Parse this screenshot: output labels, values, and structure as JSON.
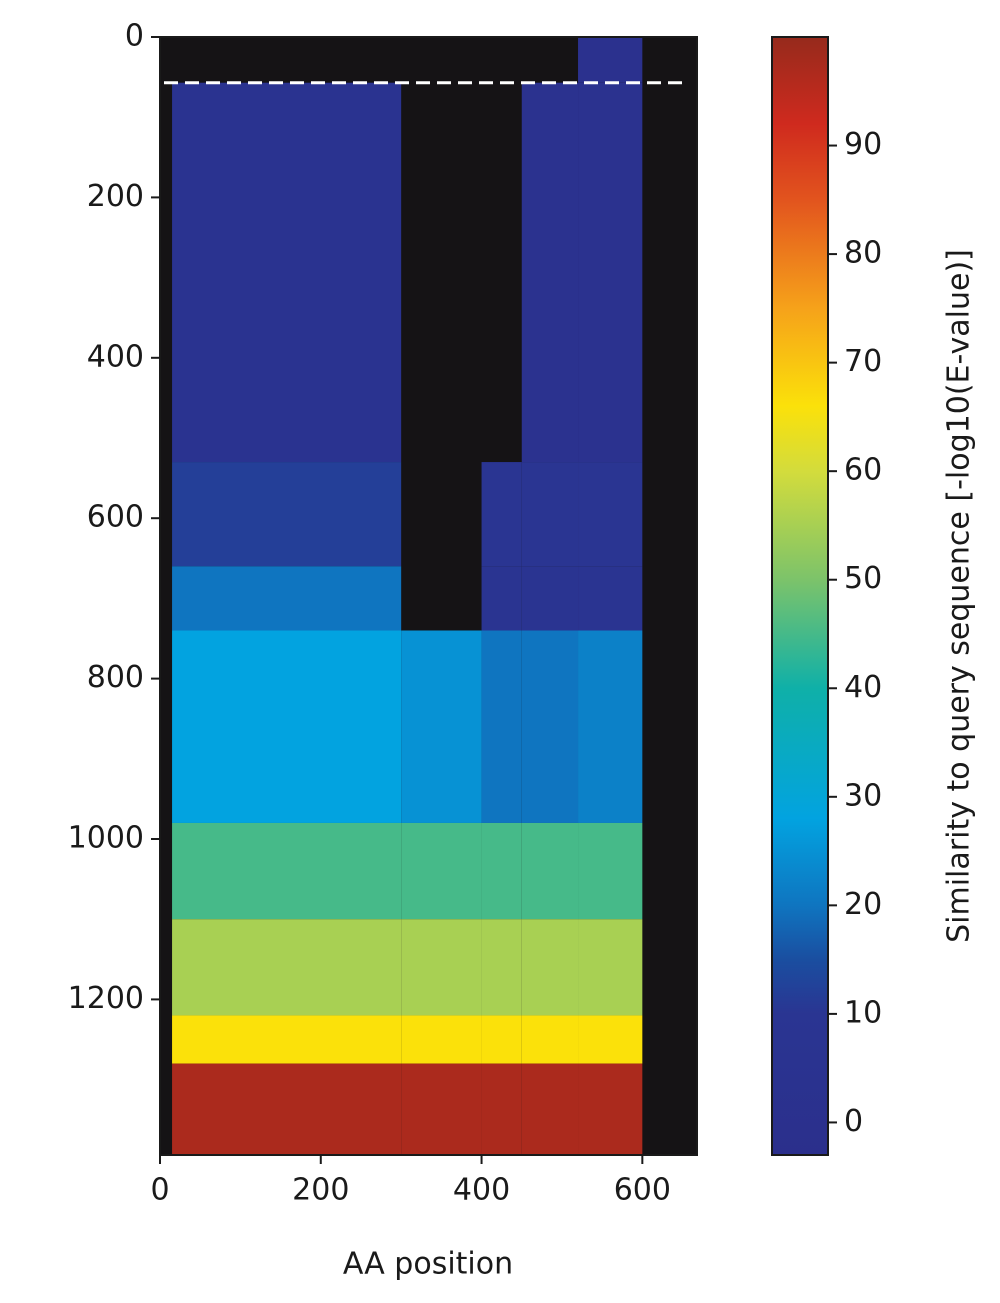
{
  "chart_data": {
    "type": "heatmap",
    "x_edges": [
      0,
      15,
      300,
      400,
      450,
      520,
      600,
      668
    ],
    "y_edges": [
      0,
      57,
      530,
      660,
      740,
      980,
      1100,
      1220,
      1280,
      1394
    ],
    "z": [
      [
        null,
        null,
        null,
        null,
        null,
        2,
        null
      ],
      [
        null,
        5,
        null,
        null,
        3,
        3,
        null
      ],
      [
        null,
        12,
        null,
        10,
        10,
        10,
        null
      ],
      [
        null,
        20,
        null,
        8,
        8,
        8,
        null
      ],
      [
        null,
        28,
        25,
        20,
        20,
        22,
        null
      ],
      [
        null,
        45,
        45,
        45,
        45,
        45,
        null
      ],
      [
        null,
        55,
        55,
        55,
        55,
        55,
        null
      ],
      [
        null,
        66,
        66,
        66,
        66,
        66,
        null
      ],
      [
        null,
        97,
        97,
        97,
        97,
        97,
        null
      ]
    ],
    "xlim": [
      0,
      668
    ],
    "ylim": [
      1394,
      0
    ],
    "xticks": [
      0,
      200,
      400,
      600
    ],
    "yticks": [
      0,
      200,
      400,
      600,
      800,
      1000,
      1200
    ],
    "xlabel": "AA position",
    "background": "#151315",
    "hline": {
      "value": 57,
      "color": "#ffffff",
      "dashed": true
    },
    "colorbar": {
      "label": "Similarity to query sequence [-log10(E-value)]",
      "clim": [
        -3,
        100
      ],
      "ticks": [
        0,
        10,
        20,
        30,
        40,
        50,
        60,
        70,
        80,
        90
      ]
    },
    "colormap": [
      {
        "value": -3,
        "color": "#2b2f8c"
      },
      {
        "value": 10,
        "color": "#2a3592"
      },
      {
        "value": 15,
        "color": "#1a4ea0"
      },
      {
        "value": 20,
        "color": "#0f75c0"
      },
      {
        "value": 28,
        "color": "#02a3e0"
      },
      {
        "value": 40,
        "color": "#0fb0a8"
      },
      {
        "value": 50,
        "color": "#7cc36a"
      },
      {
        "value": 60,
        "color": "#d3dc3c"
      },
      {
        "value": 66,
        "color": "#fbe10a"
      },
      {
        "value": 75,
        "color": "#f6a21a"
      },
      {
        "value": 85,
        "color": "#e2541e"
      },
      {
        "value": 92,
        "color": "#cf2a1e"
      },
      {
        "value": 100,
        "color": "#962a1c"
      }
    ]
  }
}
